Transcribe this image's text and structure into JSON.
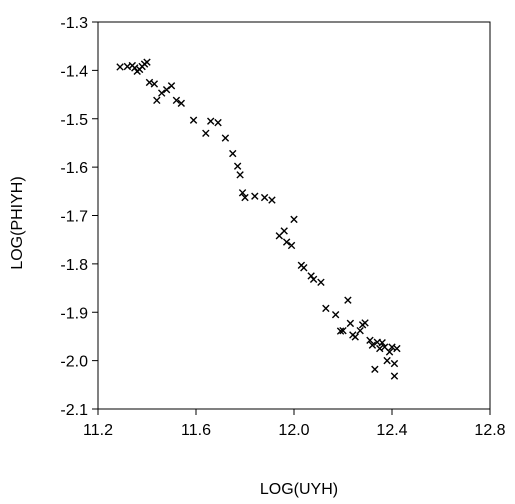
{
  "chart_data": {
    "type": "scatter",
    "title": "",
    "xlabel": "LOG(UYH)",
    "ylabel": "LOG(PHIYH)",
    "xlim": [
      11.2,
      12.8
    ],
    "ylim": [
      -2.1,
      -1.3
    ],
    "xticks": [
      "11.2",
      "11.6",
      "12.0",
      "12.4",
      "12.8"
    ],
    "yticks": [
      "-1.3",
      "-1.4",
      "-1.5",
      "-1.6",
      "-1.7",
      "-1.8",
      "-1.9",
      "-2.0",
      "-2.1"
    ],
    "grid": false,
    "marker": "x",
    "marker_color": "#000000",
    "series": [
      {
        "name": "",
        "points": [
          [
            11.29,
            -1.393
          ],
          [
            11.32,
            -1.392
          ],
          [
            11.34,
            -1.39
          ],
          [
            11.35,
            -1.395
          ],
          [
            11.36,
            -1.402
          ],
          [
            11.37,
            -1.398
          ],
          [
            11.38,
            -1.392
          ],
          [
            11.39,
            -1.387
          ],
          [
            11.4,
            -1.383
          ],
          [
            11.41,
            -1.425
          ],
          [
            11.43,
            -1.428
          ],
          [
            11.44,
            -1.462
          ],
          [
            11.46,
            -1.447
          ],
          [
            11.48,
            -1.44
          ],
          [
            11.5,
            -1.432
          ],
          [
            11.52,
            -1.462
          ],
          [
            11.54,
            -1.468
          ],
          [
            11.59,
            -1.503
          ],
          [
            11.64,
            -1.53
          ],
          [
            11.66,
            -1.505
          ],
          [
            11.69,
            -1.508
          ],
          [
            11.72,
            -1.54
          ],
          [
            11.75,
            -1.572
          ],
          [
            11.77,
            -1.598
          ],
          [
            11.78,
            -1.616
          ],
          [
            11.79,
            -1.653
          ],
          [
            11.8,
            -1.663
          ],
          [
            11.84,
            -1.66
          ],
          [
            11.88,
            -1.663
          ],
          [
            11.91,
            -1.668
          ],
          [
            11.94,
            -1.742
          ],
          [
            11.96,
            -1.732
          ],
          [
            11.97,
            -1.755
          ],
          [
            11.99,
            -1.762
          ],
          [
            12.0,
            -1.708
          ],
          [
            12.03,
            -1.803
          ],
          [
            12.04,
            -1.808
          ],
          [
            12.07,
            -1.825
          ],
          [
            12.08,
            -1.832
          ],
          [
            12.11,
            -1.838
          ],
          [
            12.13,
            -1.892
          ],
          [
            12.17,
            -1.905
          ],
          [
            12.19,
            -1.939
          ],
          [
            12.2,
            -1.938
          ],
          [
            12.22,
            -1.875
          ],
          [
            12.23,
            -1.923
          ],
          [
            12.24,
            -1.947
          ],
          [
            12.25,
            -1.951
          ],
          [
            12.27,
            -1.938
          ],
          [
            12.28,
            -1.926
          ],
          [
            12.29,
            -1.922
          ],
          [
            12.31,
            -1.958
          ],
          [
            12.32,
            -1.968
          ],
          [
            12.33,
            -2.018
          ],
          [
            12.34,
            -1.962
          ],
          [
            12.35,
            -1.975
          ],
          [
            12.36,
            -1.963
          ],
          [
            12.37,
            -1.972
          ],
          [
            12.38,
            -2.0
          ],
          [
            12.39,
            -1.982
          ],
          [
            12.4,
            -1.972
          ],
          [
            12.41,
            -2.006
          ],
          [
            12.41,
            -2.032
          ],
          [
            12.42,
            -1.975
          ]
        ]
      }
    ]
  }
}
